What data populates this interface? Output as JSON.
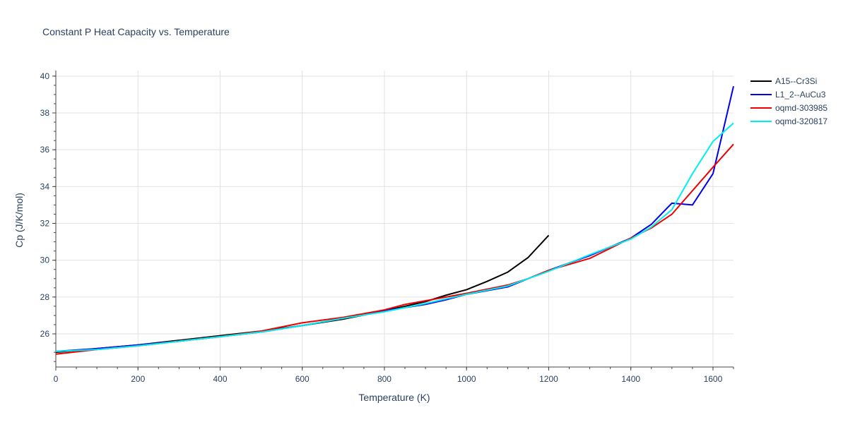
{
  "chart_data": {
    "type": "line",
    "title": "Constant P Heat Capacity vs. Temperature",
    "xlabel": "Temperature (K)",
    "ylabel": "Cp (J/K/mol)",
    "xlim": [
      0,
      1650
    ],
    "ylim": [
      24.2,
      40.3
    ],
    "xticks": [
      0,
      200,
      400,
      600,
      800,
      1000,
      1200,
      1400,
      1600
    ],
    "yticks": [
      26,
      28,
      30,
      32,
      34,
      36,
      38,
      40
    ],
    "grid": true,
    "legend_position": "top-right",
    "series": [
      {
        "name": "A15--Cr3Si",
        "color": "#000000",
        "points": [
          [
            0,
            25.0
          ],
          [
            100,
            25.2
          ],
          [
            200,
            25.4
          ],
          [
            300,
            25.65
          ],
          [
            400,
            25.9
          ],
          [
            500,
            26.15
          ],
          [
            600,
            26.45
          ],
          [
            700,
            26.8
          ],
          [
            800,
            27.25
          ],
          [
            900,
            27.75
          ],
          [
            950,
            28.1
          ],
          [
            1000,
            28.4
          ],
          [
            1050,
            28.85
          ],
          [
            1100,
            29.35
          ],
          [
            1150,
            30.15
          ],
          [
            1200,
            31.35
          ]
        ]
      },
      {
        "name": "L1_2--AuCu3",
        "color": "#0000ee",
        "points": [
          [
            0,
            25.05
          ],
          [
            100,
            25.2
          ],
          [
            200,
            25.4
          ],
          [
            300,
            25.6
          ],
          [
            400,
            25.85
          ],
          [
            500,
            26.1
          ],
          [
            600,
            26.45
          ],
          [
            700,
            26.85
          ],
          [
            800,
            27.25
          ],
          [
            900,
            27.6
          ],
          [
            950,
            27.85
          ],
          [
            1000,
            28.15
          ],
          [
            1100,
            28.55
          ],
          [
            1150,
            29.0
          ],
          [
            1200,
            29.45
          ],
          [
            1300,
            30.25
          ],
          [
            1400,
            31.2
          ],
          [
            1450,
            31.95
          ],
          [
            1500,
            33.1
          ],
          [
            1550,
            33.0
          ],
          [
            1600,
            34.7
          ],
          [
            1650,
            39.45
          ]
        ]
      },
      {
        "name": "oqmd-303985",
        "color": "#ee0000",
        "points": [
          [
            0,
            24.9
          ],
          [
            100,
            25.15
          ],
          [
            200,
            25.35
          ],
          [
            300,
            25.6
          ],
          [
            400,
            25.85
          ],
          [
            500,
            26.15
          ],
          [
            600,
            26.6
          ],
          [
            700,
            26.9
          ],
          [
            800,
            27.3
          ],
          [
            850,
            27.6
          ],
          [
            900,
            27.8
          ],
          [
            1000,
            28.2
          ],
          [
            1100,
            28.65
          ],
          [
            1150,
            29.0
          ],
          [
            1200,
            29.45
          ],
          [
            1300,
            30.1
          ],
          [
            1400,
            31.2
          ],
          [
            1450,
            31.75
          ],
          [
            1500,
            32.5
          ],
          [
            1600,
            35.05
          ],
          [
            1650,
            36.3
          ]
        ]
      },
      {
        "name": "oqmd-320817",
        "color": "#00eeee",
        "points": [
          [
            0,
            25.05
          ],
          [
            100,
            25.15
          ],
          [
            200,
            25.35
          ],
          [
            300,
            25.6
          ],
          [
            400,
            25.85
          ],
          [
            500,
            26.1
          ],
          [
            600,
            26.45
          ],
          [
            700,
            26.85
          ],
          [
            800,
            27.2
          ],
          [
            900,
            27.65
          ],
          [
            1000,
            28.15
          ],
          [
            1100,
            28.6
          ],
          [
            1150,
            29.0
          ],
          [
            1200,
            29.4
          ],
          [
            1300,
            30.3
          ],
          [
            1400,
            31.15
          ],
          [
            1450,
            31.8
          ],
          [
            1500,
            32.75
          ],
          [
            1550,
            34.7
          ],
          [
            1600,
            36.45
          ],
          [
            1650,
            37.45
          ]
        ]
      }
    ]
  }
}
